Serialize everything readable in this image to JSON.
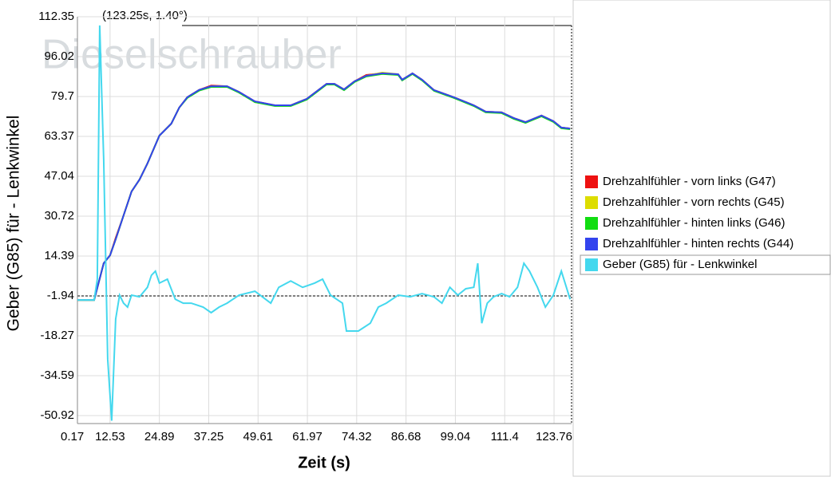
{
  "chart_data": {
    "type": "line",
    "watermark": "Dieselschrauber",
    "annotation": "(123.25s, 1.40°)",
    "xlabel": "Zeit (s)",
    "ylabel": "Geber (G85) für - Lenkwinkel",
    "xlim": [
      4.36,
      128.15
    ],
    "ylim": [
      -54.19,
      112.35
    ],
    "xticks": [
      0.17,
      12.53,
      24.89,
      37.25,
      49.61,
      61.97,
      74.32,
      86.68,
      99.04,
      111.4,
      123.76
    ],
    "yticks": [
      112.35,
      96.02,
      79.7,
      63.37,
      47.04,
      30.72,
      14.39,
      -1.94,
      -18.27,
      -34.59,
      -50.92
    ],
    "grid": true,
    "legend": "right",
    "series": [
      {
        "name": "Drehzahlfühler - vorn links (G47)",
        "color": "#ee1111",
        "x": [
          4.35,
          8.54,
          10.93,
          12.53,
          13.93,
          15.92,
          17.92,
          19.92,
          21.9,
          24.89,
          27.88,
          29.88,
          31.87,
          34.86,
          37.85,
          41.84,
          44.83,
          48.82,
          53.81,
          57.8,
          61.78,
          64.77,
          66.77,
          68.76,
          71.15,
          73.75,
          76.74,
          80.73,
          84.72,
          85.71,
          88.3,
          90.7,
          93.7,
          98.67,
          103.66,
          106.65,
          110.64,
          113.63,
          116.62,
          120.61,
          123.6,
          125.6,
          127.8
        ],
        "values": [
          -3.6,
          -3.6,
          11.4,
          14.7,
          21.8,
          31.0,
          40.8,
          45.7,
          52.3,
          63.7,
          68.6,
          75.2,
          79.4,
          82.4,
          84.2,
          83.9,
          81.6,
          77.7,
          76.1,
          76.1,
          78.7,
          82.4,
          84.9,
          84.9,
          82.6,
          85.9,
          88.5,
          89.2,
          88.8,
          86.6,
          89.2,
          86.6,
          82.3,
          79.4,
          76.1,
          73.5,
          73.2,
          70.9,
          69.2,
          71.9,
          69.6,
          67.0,
          66.6
        ]
      },
      {
        "name": "Drehzahlfühler - vorn rechts (G45)",
        "color": "#dddd00",
        "x": [
          4.35,
          8.54,
          10.93,
          12.53,
          13.93,
          15.92,
          17.92,
          19.92,
          21.9,
          24.89,
          27.88,
          29.88,
          31.87,
          34.86,
          37.85,
          41.84,
          44.83,
          48.82,
          53.81,
          57.8,
          61.78,
          64.77,
          66.77,
          68.76,
          71.15,
          73.75,
          76.74,
          80.73,
          84.72,
          85.71,
          88.3,
          90.7,
          93.7,
          98.67,
          103.66,
          106.65,
          110.64,
          113.63,
          116.62,
          120.61,
          123.6,
          125.6,
          127.8
        ],
        "values": [
          -3.6,
          -3.6,
          11.4,
          14.7,
          21.2,
          31.0,
          40.8,
          45.7,
          52.3,
          63.7,
          68.6,
          75.2,
          79.4,
          82.4,
          83.9,
          83.9,
          81.6,
          77.4,
          76.1,
          76.1,
          78.7,
          82.4,
          84.9,
          84.9,
          82.6,
          85.9,
          88.2,
          89.5,
          88.8,
          86.6,
          89.2,
          86.6,
          82.3,
          79.4,
          76.1,
          73.5,
          73.2,
          70.9,
          69.2,
          71.9,
          69.6,
          67.0,
          66.6
        ]
      },
      {
        "name": "Drehzahlfühler - hinten links (G46)",
        "color": "#11dd11",
        "x": [
          4.35,
          8.54,
          10.93,
          12.53,
          13.93,
          15.92,
          17.92,
          19.92,
          21.9,
          24.89,
          27.88,
          29.88,
          31.87,
          34.86,
          37.85,
          41.84,
          44.83,
          48.82,
          53.81,
          57.8,
          61.78,
          64.77,
          66.77,
          68.76,
          71.15,
          73.75,
          76.74,
          80.73,
          84.72,
          85.71,
          88.3,
          90.7,
          93.7,
          98.67,
          103.66,
          106.65,
          110.64,
          113.63,
          116.62,
          120.61,
          123.6,
          125.6,
          127.8
        ],
        "values": [
          -3.6,
          -3.6,
          11.4,
          14.7,
          21.2,
          31.0,
          40.8,
          45.7,
          52.3,
          63.7,
          68.6,
          75.2,
          79.1,
          82.1,
          83.6,
          83.6,
          81.3,
          77.4,
          75.8,
          75.8,
          78.4,
          82.1,
          84.6,
          84.6,
          82.3,
          85.6,
          87.9,
          88.9,
          88.5,
          86.3,
          88.9,
          86.3,
          82.0,
          79.1,
          75.8,
          73.2,
          72.9,
          70.6,
          68.9,
          71.6,
          69.3,
          66.7,
          66.3
        ]
      },
      {
        "name": "Drehzahlfühler - hinten rechts (G44)",
        "color": "#3344ee",
        "x": [
          4.35,
          8.54,
          10.93,
          12.53,
          13.93,
          15.92,
          17.92,
          19.92,
          21.9,
          24.89,
          27.88,
          29.88,
          31.87,
          34.86,
          37.85,
          41.84,
          44.83,
          48.82,
          53.81,
          57.8,
          61.78,
          64.77,
          66.77,
          68.76,
          71.15,
          73.75,
          76.74,
          80.73,
          84.72,
          85.71,
          88.3,
          90.7,
          93.7,
          98.67,
          103.66,
          106.65,
          110.64,
          113.63,
          116.62,
          120.61,
          123.6,
          125.6,
          127.8
        ],
        "values": [
          -3.6,
          -3.6,
          11.4,
          14.7,
          21.2,
          31.0,
          40.8,
          45.7,
          52.3,
          63.7,
          68.6,
          75.2,
          79.4,
          82.4,
          83.9,
          83.9,
          81.6,
          77.7,
          76.1,
          76.1,
          78.7,
          82.4,
          84.9,
          84.9,
          82.6,
          85.9,
          88.2,
          89.2,
          88.8,
          86.6,
          89.2,
          86.6,
          82.3,
          79.4,
          76.1,
          73.5,
          73.2,
          70.9,
          69.2,
          71.9,
          69.6,
          67.0,
          66.6
        ]
      },
      {
        "name": "Geber (G85) für - Lenkwinkel",
        "color": "#44d8ee",
        "x": [
          4.35,
          8.54,
          9.34,
          9.94,
          10.93,
          11.93,
          12.93,
          13.93,
          14.92,
          15.92,
          16.92,
          17.92,
          19.91,
          21.9,
          22.9,
          23.9,
          24.89,
          26.89,
          28.88,
          30.88,
          32.87,
          35.86,
          37.85,
          39.85,
          41.84,
          44.83,
          48.82,
          52.8,
          54.8,
          57.79,
          60.78,
          63.77,
          65.77,
          67.76,
          70.75,
          71.75,
          74.74,
          77.73,
          79.73,
          81.72,
          84.71,
          87.7,
          90.69,
          93.68,
          95.68,
          97.67,
          99.66,
          101.66,
          103.65,
          104.65,
          105.65,
          107.04,
          108.64,
          110.63,
          112.63,
          114.62,
          116.22,
          117.61,
          119.61,
          121.6,
          123.6,
          125.59,
          127.8
        ],
        "values": [
          -3.6,
          -3.6,
          4.9,
          108.8,
          53.9,
          -27.8,
          -53.0,
          -11.4,
          -1.6,
          -4.9,
          -6.5,
          -1.6,
          -2.3,
          1.6,
          6.5,
          8.2,
          3.3,
          4.9,
          -3.3,
          -4.9,
          -4.9,
          -6.5,
          -8.8,
          -6.5,
          -4.9,
          -1.6,
          0.0,
          -4.9,
          1.6,
          4.2,
          1.6,
          3.3,
          4.9,
          -1.6,
          -4.9,
          -16.3,
          -16.3,
          -13.1,
          -6.5,
          -4.9,
          -1.6,
          -2.3,
          -1.0,
          -2.3,
          -4.9,
          1.6,
          -1.6,
          1.0,
          1.6,
          11.4,
          -13.1,
          -4.9,
          -2.3,
          -1.0,
          -2.3,
          1.6,
          11.4,
          8.2,
          1.6,
          -6.5,
          -1.6,
          8.2,
          -3.3
        ]
      }
    ]
  }
}
